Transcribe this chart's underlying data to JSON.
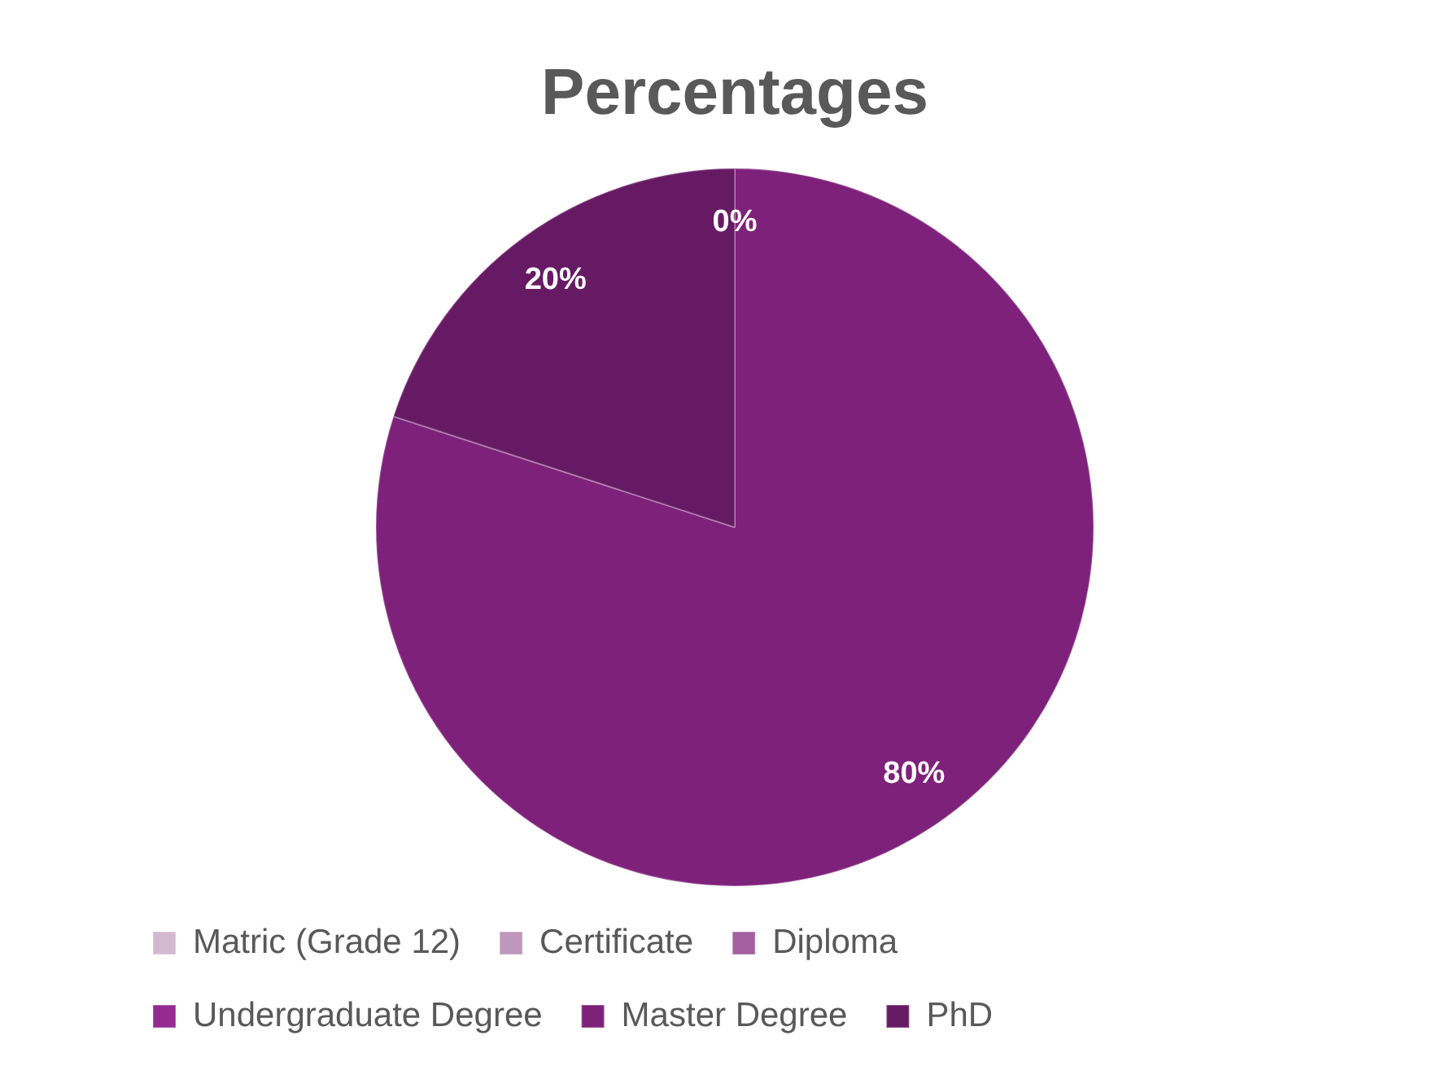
{
  "chart_data": {
    "type": "pie",
    "title": "Percentages",
    "categories": [
      "Matric (Grade 12)",
      "Certificate",
      "Diploma",
      "Undergraduate Degree",
      "Master Degree",
      "PhD"
    ],
    "values": [
      0,
      0,
      0,
      0,
      80,
      20
    ],
    "colors": [
      "#d4b8d0",
      "#bf97bc",
      "#a460a0",
      "#952a90",
      "#7e217a",
      "#671a64"
    ],
    "value_labels": [
      null,
      null,
      null,
      "0%",
      "80%",
      "20%"
    ],
    "legend": "bottom"
  }
}
